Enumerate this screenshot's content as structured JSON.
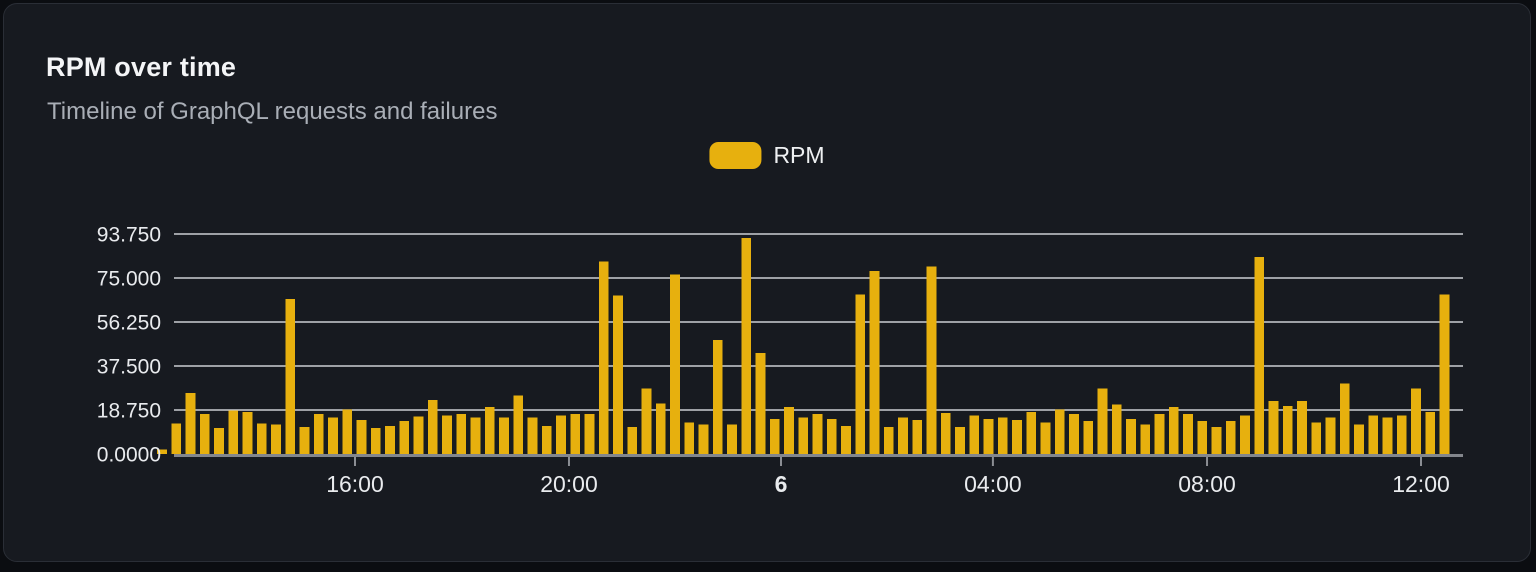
{
  "panel": {
    "title": "RPM over time",
    "subtitle": "Timeline of GraphQL requests and failures"
  },
  "legend": {
    "position": "top-center",
    "items": [
      {
        "label": "RPM",
        "color": "#e7b00e"
      }
    ]
  },
  "chart_data": {
    "type": "bar",
    "title": "RPM over time",
    "subtitle": "Timeline of GraphQL requests and failures",
    "grid": true,
    "legend_position": "top-center",
    "bar_color": "#e7b00e",
    "grid_color": "#cbced3",
    "axis_color": "#83868c",
    "tick_color": "#8b8e94",
    "label_color": "#e9ebee",
    "background_color": "#171a20",
    "ylim": [
      0,
      93.75
    ],
    "y_ticks": [
      {
        "value": 0,
        "label": "0.0000"
      },
      {
        "value": 18.75,
        "label": "18.750"
      },
      {
        "value": 37.5,
        "label": "37.500"
      },
      {
        "value": 56.25,
        "label": "56.250"
      },
      {
        "value": 75,
        "label": "75.000"
      },
      {
        "value": 93.75,
        "label": "93.750"
      }
    ],
    "x_ticks": [
      {
        "label": "16:00",
        "pos": 0.1529,
        "bold": false
      },
      {
        "label": "20:00",
        "pos": 0.3165,
        "bold": false
      },
      {
        "label": "6",
        "pos": 0.4786,
        "bold": true
      },
      {
        "label": "04:00",
        "pos": 0.6406,
        "bold": false
      },
      {
        "label": "08:00",
        "pos": 0.8043,
        "bold": false
      },
      {
        "label": "12:00",
        "pos": 0.9679,
        "bold": false
      }
    ],
    "series": [
      {
        "name": "RPM",
        "values": [
          2,
          13,
          26,
          17,
          11,
          18.5,
          18,
          13,
          12.5,
          66,
          11.5,
          17,
          15.5,
          19,
          14.5,
          11,
          12,
          14,
          16,
          23,
          16.5,
          17,
          15.5,
          20,
          15.5,
          25,
          15.5,
          12,
          16.5,
          17,
          17,
          82,
          67.5,
          11.5,
          28,
          21.5,
          76.5,
          13.5,
          12.5,
          48.5,
          12.5,
          92,
          43,
          15,
          20,
          15.5,
          17,
          15,
          12,
          68,
          78,
          11.5,
          15.5,
          14.5,
          80,
          17.5,
          11.5,
          16.5,
          15,
          15.5,
          14.5,
          18,
          13.5,
          19,
          17,
          14,
          28,
          21,
          15,
          12.5,
          17,
          20,
          17,
          14,
          11.5,
          14,
          16.5,
          84,
          22.5,
          20.5,
          22.5,
          13.5,
          15.5,
          30,
          12.5,
          16.5,
          15.5,
          16.5,
          28,
          18,
          68
        ]
      }
    ]
  }
}
